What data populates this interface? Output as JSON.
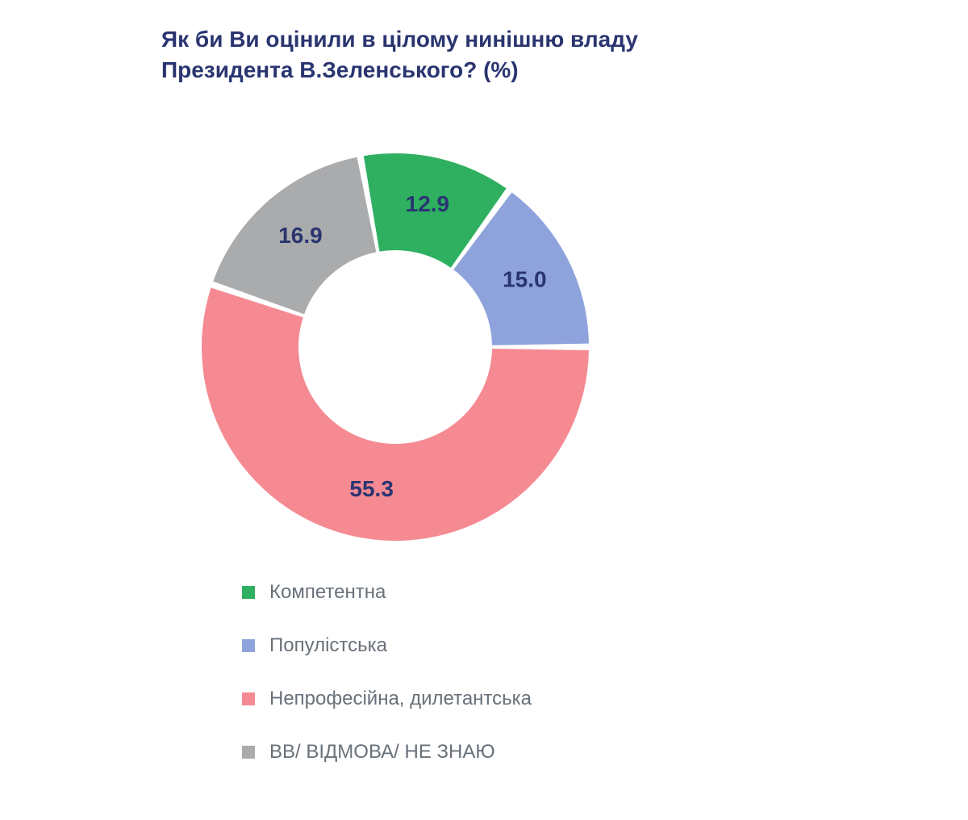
{
  "chart": {
    "type": "donut",
    "title": "Як би Ви оцінили в цілому нинішню владу Президента В.Зеленського? (%)",
    "title_color": "#2a3570",
    "title_fontsize": 28,
    "background_color": "#ffffff",
    "label_color": "#2a3570",
    "label_fontsize": 28,
    "legend_text_color": "#687079",
    "legend_fontsize": 24,
    "outer_radius": 240,
    "inner_radius": 120,
    "slice_gap_deg": 2,
    "start_angle_deg": -54,
    "slices": [
      {
        "label": "Популістська",
        "value": 15.0,
        "display": "15.0",
        "color": "#8ea3dc"
      },
      {
        "label": "Непрофесійна, дилетантська",
        "value": 55.3,
        "display": "55.3",
        "color": "#f58a93"
      },
      {
        "label": "ВВ/ ВІДМОВА/ НЕ ЗНАЮ",
        "value": 16.9,
        "display": "16.9",
        "color": "#a9abad"
      },
      {
        "label": "Компетентна",
        "value": 12.9,
        "display": "12.9",
        "color": "#2fb061"
      }
    ],
    "legend_order": [
      3,
      0,
      1,
      2
    ]
  }
}
